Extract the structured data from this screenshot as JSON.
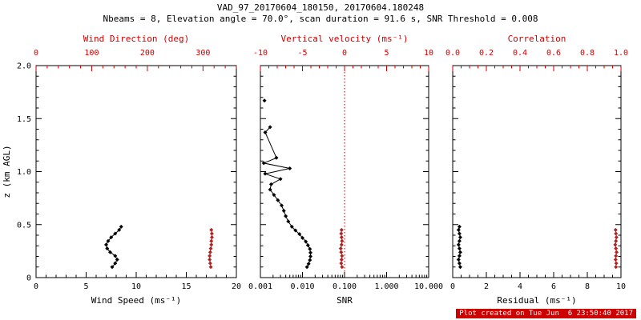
{
  "header": {
    "title": "VAD_97_20170604_180150, 20170604.180248",
    "subtitle": "Nbeams = 8, Elevation angle = 70.0°, scan duration = 91.6 s, SNR Threshold = 0.008"
  },
  "footer": {
    "created": "Plot created on Tue Jun  6 23:50:40 2017"
  },
  "colors": {
    "black": "#000000",
    "axis_red": "#cc0000",
    "data_red": "#b22222",
    "timestamp_bg": "#cc0000",
    "timestamp_fg": "#ffffff"
  },
  "chart_data": {
    "type": "line",
    "title": "VAD_97_20170604_180150, 20170604.180248",
    "subtitle": "Nbeams = 8, Elevation angle = 70.0°, scan duration = 91.6 s, SNR Threshold = 0.008",
    "marker": "diamond",
    "y_axis": {
      "label": "z (km AGL)",
      "range": [
        0,
        2
      ],
      "major_ticks": [
        0,
        0.5,
        1.0,
        1.5,
        2.0
      ],
      "tick_labels": [
        "0",
        "0.5",
        "1.0",
        "1.5",
        "2.0"
      ],
      "minor_step": 0.1
    },
    "panels": [
      {
        "name": "wind-panel",
        "bottom_axis": {
          "label": "Wind Speed (ms⁻¹)",
          "scale": "linear",
          "range": [
            0,
            20
          ],
          "major_ticks": [
            0,
            5,
            10,
            15,
            20
          ],
          "tick_labels": [
            "0",
            "5",
            "10",
            "15",
            "20"
          ],
          "minor_step": 1
        },
        "top_axis": {
          "label": "Wind Direction (deg)",
          "scale": "linear",
          "range": [
            0,
            360
          ],
          "major_ticks": [
            0,
            100,
            200,
            300
          ],
          "tick_labels": [
            "0",
            "100",
            "200",
            "300"
          ],
          "minor_step": 20
        },
        "series": [
          {
            "name": "wind-speed",
            "axis": "bottom",
            "color": "#000000",
            "line": true,
            "z": [
              0.1,
              0.135,
              0.17,
              0.205,
              0.24,
              0.275,
              0.31,
              0.345,
              0.38,
              0.415,
              0.45,
              0.48
            ],
            "v": [
              7.6,
              7.9,
              8.1,
              7.9,
              7.4,
              7.1,
              7.0,
              7.2,
              7.5,
              7.9,
              8.3,
              8.5
            ]
          },
          {
            "name": "wind-direction",
            "axis": "top",
            "color": "#b22222",
            "line": true,
            "z": [
              0.1,
              0.135,
              0.17,
              0.205,
              0.24,
              0.275,
              0.31,
              0.345,
              0.38,
              0.415,
              0.45
            ],
            "v": [
              314,
              313,
              312,
              312,
              313,
              314,
              315,
              315,
              316,
              316,
              315
            ]
          }
        ]
      },
      {
        "name": "snr-panel",
        "bottom_axis": {
          "label": "SNR",
          "scale": "log",
          "range": [
            0.001,
            10
          ],
          "major_ticks": [
            0.001,
            0.01,
            0.1,
            1,
            10
          ],
          "tick_labels": [
            "0.001",
            "0.010",
            "0.100",
            "1.000",
            "10.000"
          ]
        },
        "top_axis": {
          "label": "Vertical velocity (ms⁻¹)",
          "scale": "linear",
          "range": [
            -10,
            10
          ],
          "major_ticks": [
            -10,
            -5,
            0,
            5,
            10
          ],
          "tick_labels": [
            "-10",
            "-5",
            "0",
            "5",
            "10"
          ],
          "minor_step": 1
        },
        "reference_line": {
          "axis": "top",
          "value": 0,
          "style": "dotted",
          "color": "#cc0000"
        },
        "series": [
          {
            "name": "snr-isolated-point",
            "axis": "bottom",
            "color": "#000000",
            "line": false,
            "z": [
              1.67
            ],
            "v": [
              0.00125
            ]
          },
          {
            "name": "snr-profile",
            "axis": "bottom",
            "color": "#000000",
            "line": true,
            "z": [
              1.42,
              1.37,
              1.13,
              1.08,
              1.03,
              0.98,
              0.93,
              0.88,
              0.83,
              0.78,
              0.73,
              0.68,
              0.63,
              0.58,
              0.53,
              0.48,
              0.445,
              0.41,
              0.375,
              0.34,
              0.305,
              0.27,
              0.235,
              0.2,
              0.165,
              0.13,
              0.1
            ],
            "v": [
              0.0017,
              0.0013,
              0.0024,
              0.0012,
              0.005,
              0.0013,
              0.003,
              0.0018,
              0.0017,
              0.0021,
              0.0026,
              0.0032,
              0.0036,
              0.004,
              0.0046,
              0.0056,
              0.0068,
              0.0085,
              0.01,
              0.012,
              0.0135,
              0.015,
              0.0155,
              0.0155,
              0.015,
              0.014,
              0.0128
            ]
          },
          {
            "name": "vertical-velocity",
            "axis": "top",
            "color": "#b22222",
            "line": true,
            "z": [
              0.1,
              0.135,
              0.17,
              0.205,
              0.24,
              0.275,
              0.31,
              0.345,
              0.38,
              0.415,
              0.45
            ],
            "v": [
              -0.3,
              -0.4,
              -0.35,
              -0.3,
              -0.4,
              -0.45,
              -0.35,
              -0.3,
              -0.35,
              -0.4,
              -0.35
            ]
          }
        ]
      },
      {
        "name": "residual-panel",
        "bottom_axis": {
          "label": "Residual (ms⁻¹)",
          "scale": "linear",
          "range": [
            0,
            10
          ],
          "major_ticks": [
            0,
            2,
            4,
            6,
            8,
            10
          ],
          "tick_labels": [
            "0",
            "2",
            "4",
            "6",
            "8",
            "10"
          ],
          "minor_step": 0.5
        },
        "top_axis": {
          "label": "Correlation",
          "scale": "linear",
          "range": [
            0,
            1
          ],
          "major_ticks": [
            0,
            0.2,
            0.4,
            0.6,
            0.8,
            1.0
          ],
          "tick_labels": [
            "0.0",
            "0.2",
            "0.4",
            "0.6",
            "0.8",
            "1.0"
          ],
          "minor_step": 0.05
        },
        "series": [
          {
            "name": "residual",
            "axis": "bottom",
            "color": "#000000",
            "line": true,
            "z": [
              0.1,
              0.135,
              0.17,
              0.205,
              0.24,
              0.275,
              0.31,
              0.345,
              0.38,
              0.415,
              0.45,
              0.48
            ],
            "v": [
              0.45,
              0.4,
              0.35,
              0.4,
              0.45,
              0.4,
              0.35,
              0.4,
              0.45,
              0.4,
              0.35,
              0.4
            ]
          },
          {
            "name": "correlation",
            "axis": "top",
            "color": "#b22222",
            "line": true,
            "z": [
              0.1,
              0.135,
              0.17,
              0.205,
              0.24,
              0.275,
              0.31,
              0.345,
              0.38,
              0.415,
              0.45
            ],
            "v": [
              0.97,
              0.972,
              0.968,
              0.97,
              0.974,
              0.97,
              0.966,
              0.97,
              0.973,
              0.97,
              0.968
            ]
          }
        ]
      }
    ]
  }
}
